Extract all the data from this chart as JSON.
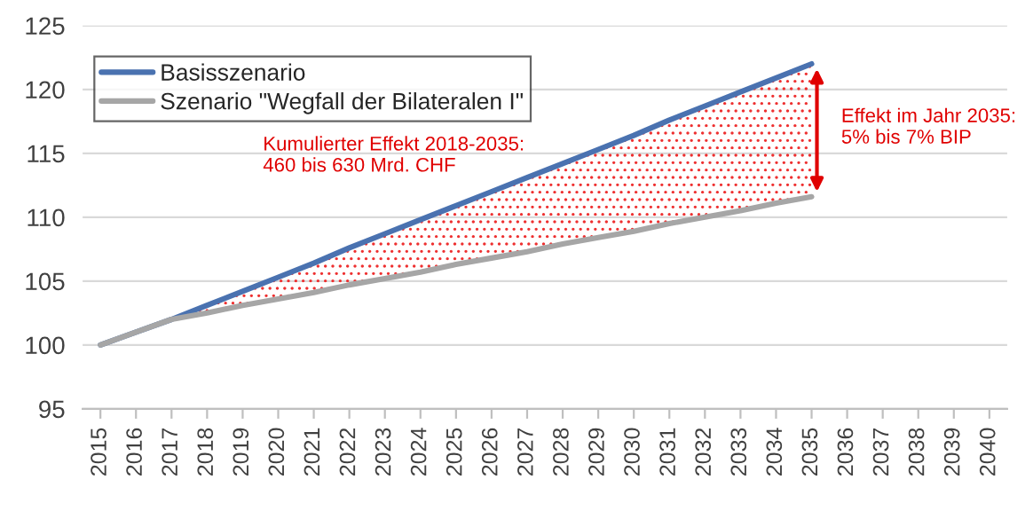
{
  "chart_data": {
    "type": "line",
    "categories": [
      "2015",
      "2016",
      "2017",
      "2018",
      "2019",
      "2020",
      "2021",
      "2022",
      "2023",
      "2024",
      "2025",
      "2026",
      "2027",
      "2028",
      "2029",
      "2030",
      "2031",
      "2032",
      "2033",
      "2034",
      "2035",
      "2036",
      "2037",
      "2038",
      "2039",
      "2040"
    ],
    "series": [
      {
        "name": "Basisszenario",
        "color": "#4a72b0",
        "values": [
          100,
          101,
          102,
          103.1,
          104.2,
          105.3,
          106.4,
          107.6,
          108.7,
          109.8,
          110.9,
          112.0,
          113.1,
          114.2,
          115.3,
          116.4,
          117.6,
          118.7,
          119.8,
          120.9,
          122.0,
          null,
          null,
          null,
          null,
          null
        ],
        "lower": [
          100,
          101,
          102,
          102.5,
          103.1,
          103.6,
          104.1,
          104.7,
          105.2,
          105.7,
          106.3,
          106.8,
          107.3,
          107.9,
          108.4,
          108.9,
          109.5,
          110.0,
          110.5,
          111.1,
          111.6,
          null,
          null,
          null,
          null,
          null
        ],
        "upper": [
          100,
          101,
          102,
          103.1,
          104.2,
          105.3,
          106.4,
          107.6,
          108.7,
          109.8,
          110.9,
          112.0,
          113.1,
          114.2,
          115.3,
          116.4,
          117.6,
          118.7,
          119.8,
          120.9,
          122.0,
          null,
          null,
          null,
          null,
          null
        ]
      },
      {
        "name": "Szenario \"Wegfall der Bilateralen I\"",
        "color": "#a6a6a6",
        "values": [
          100,
          101,
          102,
          102.5,
          103.1,
          103.6,
          104.1,
          104.7,
          105.2,
          105.7,
          106.3,
          106.8,
          107.3,
          107.9,
          108.4,
          108.9,
          109.5,
          110.0,
          110.5,
          111.1,
          111.6,
          null,
          null,
          null,
          null,
          null
        ]
      }
    ],
    "ylim": [
      95,
      125
    ],
    "yticks": [
      95,
      100,
      105,
      110,
      115,
      120,
      125
    ],
    "grid": "y",
    "legend": "top left",
    "annotations": [
      "Kumulierter Effekt 2018-2035:\n460 bis 630 Mrd. CHF",
      {
        "text": "Effekt im Jahr 2035:\n5% bis 7% BIP",
        "x": "2035",
        "y": 117
      }
    ]
  }
}
